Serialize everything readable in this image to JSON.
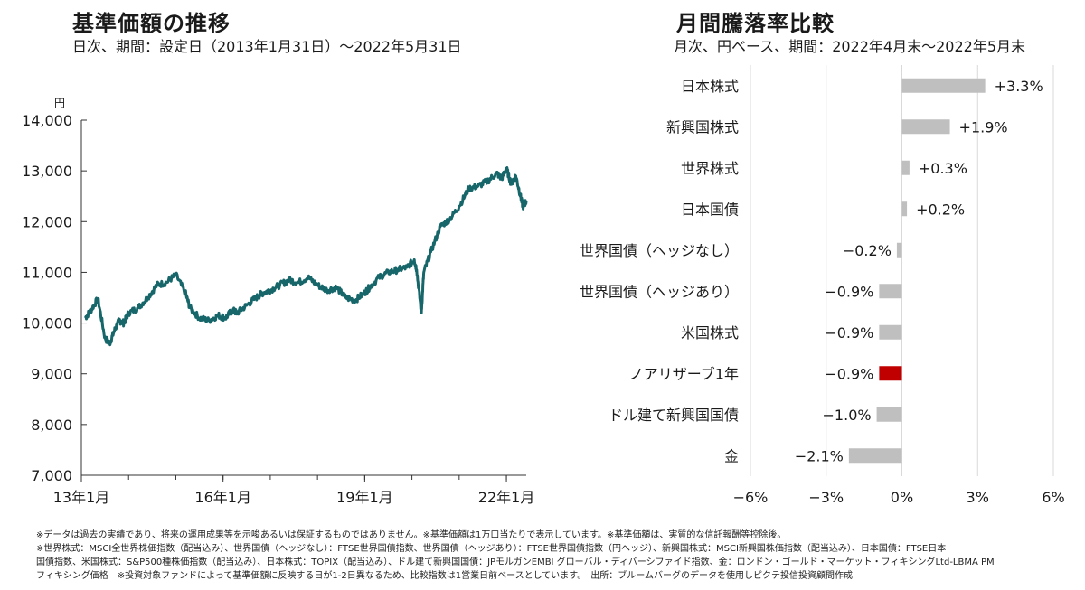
{
  "left": {
    "title": "基準価額の推移",
    "subtitle": "日次、期間：設定日（2013年1月31日）～2022年5月31日"
  },
  "right": {
    "title": "月間騰落率比較",
    "subtitle": "月次、円ベース、期間：2022年4月末～2022年5月末"
  },
  "colors": {
    "line": "#16666a",
    "bar": "#bfbfbf",
    "highlight": "#c00000",
    "grid": "#d9d9d9"
  },
  "chart_data": [
    {
      "type": "line",
      "title": "基準価額の推移",
      "ylabel": "円",
      "ylim": [
        7000,
        14000
      ],
      "yticks": [
        "7,000",
        "8,000",
        "9,000",
        "10,000",
        "11,000",
        "12,000",
        "13,000",
        "14,000"
      ],
      "xticks": [
        "13年1月",
        "16年1月",
        "19年1月",
        "22年1月"
      ],
      "xtick_years": [
        2013.0,
        2016.0,
        2019.0,
        2022.0
      ],
      "xlim": [
        2013.0,
        2022.42
      ],
      "series": [
        {
          "x": [
            2013.08,
            2013.2,
            2013.35,
            2013.5,
            2013.6,
            2013.7,
            2013.8,
            2013.9,
            2014.0,
            2014.2,
            2014.4,
            2014.6,
            2014.8,
            2015.0,
            2015.2,
            2015.3,
            2015.5,
            2015.7,
            2015.9,
            2016.05,
            2016.2,
            2016.3,
            2016.5,
            2016.7,
            2016.85,
            2017.0,
            2017.2,
            2017.4,
            2017.6,
            2017.8,
            2018.0,
            2018.2,
            2018.4,
            2018.6,
            2018.8,
            2019.0,
            2019.1,
            2019.3,
            2019.5,
            2019.7,
            2019.9,
            2020.05,
            2020.1,
            2020.2,
            2020.25,
            2020.4,
            2020.6,
            2020.8,
            2021.0,
            2021.2,
            2021.4,
            2021.6,
            2021.8,
            2021.9,
            2022.0,
            2022.1,
            2022.2,
            2022.3,
            2022.35,
            2022.42
          ],
          "y": [
            10100,
            10250,
            10480,
            9700,
            9600,
            9850,
            10050,
            10000,
            10200,
            10300,
            10500,
            10750,
            10800,
            10950,
            10600,
            10300,
            10100,
            10050,
            10150,
            10100,
            10250,
            10200,
            10350,
            10500,
            10600,
            10650,
            10750,
            10850,
            10800,
            10900,
            10750,
            10650,
            10700,
            10500,
            10450,
            10600,
            10700,
            10900,
            11000,
            11050,
            11100,
            11250,
            11050,
            10200,
            11000,
            11400,
            11900,
            12050,
            12300,
            12650,
            12700,
            12800,
            12950,
            12850,
            13050,
            12750,
            12900,
            12500,
            12300,
            12400
          ]
        }
      ]
    },
    {
      "type": "bar",
      "orientation": "horizontal",
      "title": "月間騰落率比較",
      "categories": [
        "日本株式",
        "新興国株式",
        "世界株式",
        "日本国債",
        "世界国債（ヘッジなし）",
        "世界国債（ヘッジあり）",
        "米国株式",
        "ノアリザーブ1年",
        "ドル建て新興国国債",
        "金"
      ],
      "values": [
        3.3,
        1.9,
        0.3,
        0.2,
        -0.2,
        -0.9,
        -0.9,
        -0.9,
        -1.0,
        -2.1
      ],
      "labels": [
        "+3.3%",
        "+1.9%",
        "+0.3%",
        "+0.2%",
        "−0.2%",
        "−0.9%",
        "−0.9%",
        "−0.9%",
        "−1.0%",
        "−2.1%"
      ],
      "highlight": "ノアリザーブ1年",
      "xlim": [
        -6,
        6
      ],
      "xticks": [
        "−6%",
        "−3%",
        "0%",
        "3%",
        "6%"
      ],
      "xtick_values": [
        -6,
        -3,
        0,
        3,
        6
      ],
      "grid": true
    }
  ],
  "footnotes": [
    "※データは過去の実績であり、将来の運用成果等を示唆あるいは保証するものではありません。※基準価額は1万口当たりで表示しています。※基準価額は、実質的な信託報酬等控除後。",
    "※世界株式：MSCI全世界株価指数（配当込み）、世界国債（ヘッジなし）：FTSE世界国債指数、世界国債（ヘッジあり）：FTSE世界国債指数（円ヘッジ）、新興国株式：MSCI新興国株価指数（配当込み）、日本国債：FTSE日本",
    "国債指数、米国株式：S&P500種株価指数（配当込み）、日本株式：TOPIX（配当込み）、ドル建て新興国国債：JPモルガンEMBI グローバル・ディバーシファイド指数、金：ロンドン・ゴールド・マーケット・フィキシングLtd-LBMA PM",
    "フィキシング価格　※投資対象ファンドによって基準価額に反映する日が1-2日異なるため、比較指数は1営業日前ベースとしています。　出所：ブルームバーグのデータを使用しピクテ投信投資顧問作成"
  ]
}
